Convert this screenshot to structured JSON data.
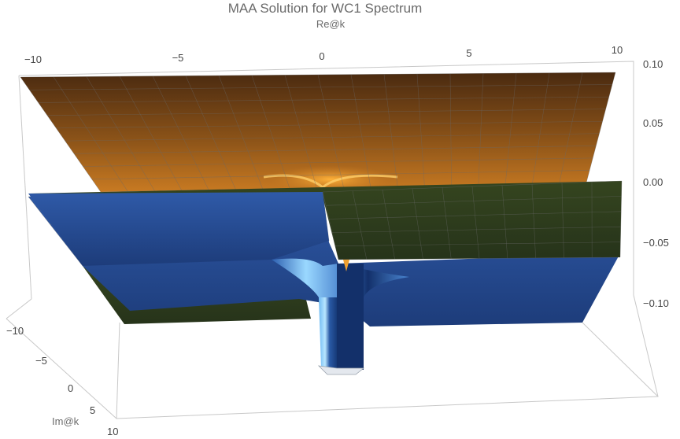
{
  "chart_data": {
    "type": "surface3d",
    "title": "MAA Solution for WC1 Spectrum",
    "x_axis_label": "Re@k",
    "y_axis_label": "Im@k",
    "x_ticks": [
      "−10",
      "−5",
      "0",
      "5",
      "10"
    ],
    "y_ticks": [
      "−10",
      "−5",
      "0",
      "5",
      "10"
    ],
    "z_ticks": [
      "0.10",
      "0.05",
      "0.00",
      "−0.05",
      "−0.10"
    ],
    "x_range": [
      -10,
      10
    ],
    "y_range": [
      -10,
      10
    ],
    "z_range": [
      -0.1,
      0.1
    ],
    "series": [
      {
        "color": "#b06a1a",
        "highlight": "#f4a32a"
      },
      {
        "color": "#2a4f9a",
        "highlight": "#7fc8ff"
      },
      {
        "color": "#2f3f1c",
        "highlight": "#4a5e26"
      }
    ]
  }
}
